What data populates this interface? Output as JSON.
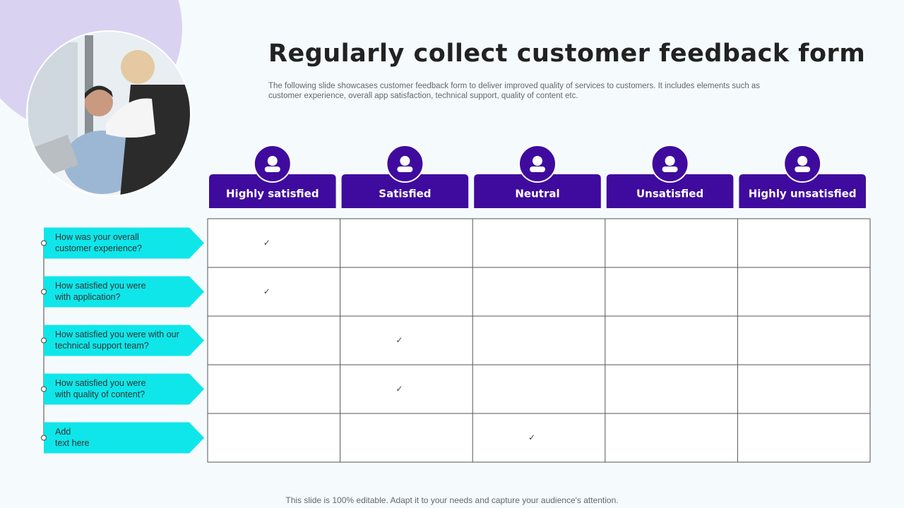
{
  "header": {
    "title": "Regularly collect customer feedback form",
    "description": "The following slide showcases customer feedback form to deliver improved quality of services to customers. It includes elements such as customer experience, overall app satisfaction, technical support, quality of content etc."
  },
  "table": {
    "columns": [
      "Highly satisfied",
      "Satisfied",
      "Neutral",
      "Unsatisfied",
      "Highly unsatisfied"
    ],
    "check_mark": "✓",
    "rows": [
      {
        "question": [
          "How was your overall",
          "customer experience?"
        ],
        "checked_column": 0
      },
      {
        "question": [
          "How satisfied you were",
          "with application?"
        ],
        "checked_column": 0
      },
      {
        "question": [
          "How satisfied you were with our",
          "technical support team?"
        ],
        "checked_column": 1
      },
      {
        "question": [
          "How satisfied you were",
          "with quality of content?"
        ],
        "checked_column": 1
      },
      {
        "question": [
          "Add",
          "text here"
        ],
        "checked_column": 2
      }
    ]
  },
  "footer": "This slide is 100% editable. Adapt it to your needs and capture your audience's attention."
}
